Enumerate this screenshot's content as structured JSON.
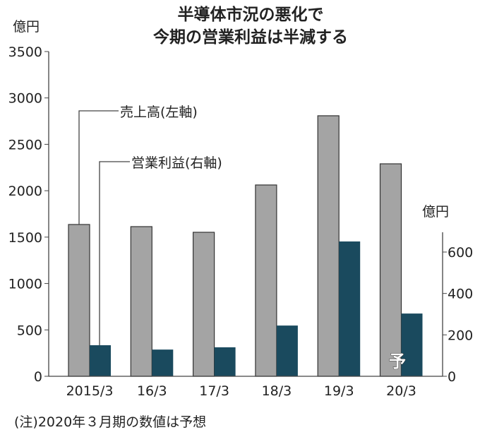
{
  "chart_data": {
    "type": "bar",
    "title": [
      "半導体市況の悪化で",
      "今期の営業利益は半減する"
    ],
    "categories": [
      "2015/3",
      "16/3",
      "17/3",
      "18/3",
      "19/3",
      "20/3"
    ],
    "left_axis": {
      "unit": "億円",
      "ylim": [
        0,
        3500
      ],
      "ticks": [
        "0",
        "500",
        "1000",
        "1500",
        "2000",
        "2500",
        "3000",
        "3500"
      ]
    },
    "right_axis": {
      "unit": "億円",
      "ylim": [
        0,
        700
      ],
      "ticks": [
        "0",
        "200",
        "400",
        "600"
      ]
    },
    "series": [
      {
        "name": "売上高(左軸)",
        "axis": "left",
        "color": "#a4a4a4",
        "values": [
          1636,
          1613,
          1552,
          2062,
          2808,
          2290
        ]
      },
      {
        "name": "営業利益(右軸)",
        "axis": "right",
        "color": "#1a4a5e",
        "values": [
          150,
          129,
          140,
          245,
          651,
          303
        ]
      }
    ],
    "forecast_marker": "予",
    "note": "(注)2020年３月期の数値は予想",
    "grid": false,
    "legend": "callout lines, top-left"
  }
}
